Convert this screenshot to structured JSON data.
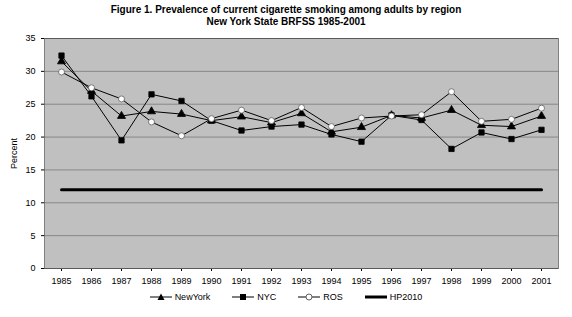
{
  "chart_data": {
    "type": "line",
    "title": "Figure 1.  Prevalence of current cigarette smoking among adults by region",
    "subtitle": "New York State BRFSS 1985-2001",
    "y_label": "Percent",
    "categories": [
      1985,
      1986,
      1987,
      1988,
      1989,
      1990,
      1991,
      1992,
      1993,
      1994,
      1995,
      1996,
      1997,
      1998,
      1999,
      2000,
      2001
    ],
    "series": [
      {
        "name": "NewYork",
        "color": "#000000",
        "marker": "triangle",
        "values": [
          31.5,
          27.0,
          23.2,
          23.9,
          23.5,
          22.5,
          23.1,
          22.2,
          23.6,
          20.8,
          21.5,
          23.3,
          22.9,
          24.1,
          21.8,
          21.6,
          23.2
        ]
      },
      {
        "name": "NYC",
        "color": "#000000",
        "marker": "square",
        "values": [
          32.4,
          26.2,
          19.5,
          26.5,
          25.5,
          22.5,
          21.0,
          21.6,
          21.9,
          20.4,
          19.3,
          23.3,
          22.6,
          18.2,
          20.7,
          19.7,
          21.1
        ]
      },
      {
        "name": "ROS",
        "color": "#000000",
        "marker": "circle",
        "values": [
          29.9,
          27.5,
          25.8,
          22.3,
          20.2,
          22.8,
          24.1,
          22.5,
          24.5,
          21.6,
          22.9,
          23.2,
          23.4,
          26.9,
          22.4,
          22.7,
          24.4
        ]
      },
      {
        "name": "HP2010",
        "color": "#000000",
        "marker": "none",
        "values": [
          12,
          12,
          12,
          12,
          12,
          12,
          12,
          12,
          12,
          12,
          12,
          12,
          12,
          12,
          12,
          12,
          12
        ]
      }
    ],
    "ylim": [
      0,
      35
    ],
    "yticks": [
      0,
      5,
      10,
      15,
      20,
      25,
      30,
      35
    ],
    "grid": true,
    "legend": "bottom"
  }
}
